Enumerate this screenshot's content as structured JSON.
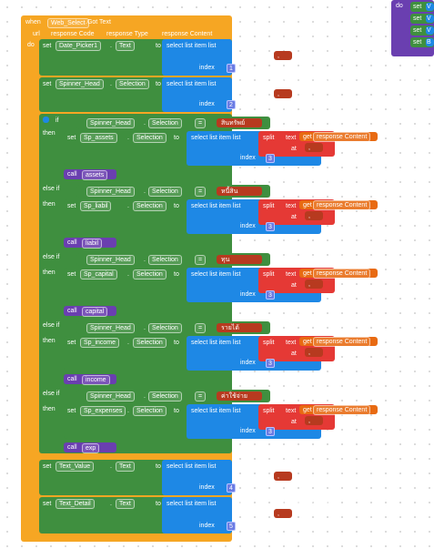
{
  "event": {
    "when": "when",
    "component": "Web_Select",
    "event_name": ".Got Text",
    "params": [
      "url",
      "response Code",
      "response Type",
      "response Content"
    ],
    "do": "do"
  },
  "kw": {
    "set": "set",
    "to": "to",
    "if": "if",
    "then": "then",
    "else_if": "else if",
    "call": "call",
    "index": "index",
    "at": "at",
    "text": "text",
    "get": "get",
    "split": "split",
    "select": "select list item  list",
    "eq": "=",
    "dot": ".",
    "resp": "response Content",
    "q_open": "\"",
    "q_close": "\""
  },
  "s1": {
    "comp": "Date_Picker1",
    "prop": "Text",
    "idx": "1"
  },
  "s2": {
    "comp": "Spinner_Head",
    "prop": "Selection",
    "idx": "2"
  },
  "branches": [
    {
      "cond_comp": "Spinner_Head",
      "cond_prop": "Selection",
      "cond_val": "สินทรัพย์",
      "set_comp": "Sp_assets",
      "set_prop": "Selection",
      "idx": "3",
      "call": "assets"
    },
    {
      "cond_comp": "Spinner_Head",
      "cond_prop": "Selection",
      "cond_val": "หนี้สิน",
      "set_comp": "Sp_liabil",
      "set_prop": "Selection",
      "idx": "3",
      "call": "liabil"
    },
    {
      "cond_comp": "Spinner_Head",
      "cond_prop": "Selection",
      "cond_val": "ทุน",
      "set_comp": "Sp_capital",
      "set_prop": "Selection",
      "idx": "3",
      "call": "capital"
    },
    {
      "cond_comp": "Spinner_Head",
      "cond_prop": "Selection",
      "cond_val": "รายได้",
      "set_comp": "Sp_income",
      "set_prop": "Selection",
      "idx": "3",
      "call": "income"
    },
    {
      "cond_comp": "Spinner_Head",
      "cond_prop": "Selection",
      "cond_val": "ค่าใช้จ่าย",
      "set_comp": "Sp_expenses",
      "set_prop": "Selection",
      "idx": "3",
      "call": "exp"
    }
  ],
  "s4": {
    "comp": "Text_Value",
    "prop": "Text",
    "idx": "4"
  },
  "s5": {
    "comp": "Text_Detail",
    "prop": "Text",
    "idx": "5"
  },
  "sep": ",",
  "side": {
    "do": "do",
    "items": [
      "set",
      "set",
      "set",
      "set"
    ],
    "tails": [
      "V",
      "V",
      "V",
      "B"
    ]
  },
  "colors": {
    "event": "#f6a623",
    "procedure": "#6a3fb0",
    "set": "#3f8f3f",
    "list": "#1e88e5",
    "text": "#e86a12",
    "logic": "#3f8f3f"
  }
}
